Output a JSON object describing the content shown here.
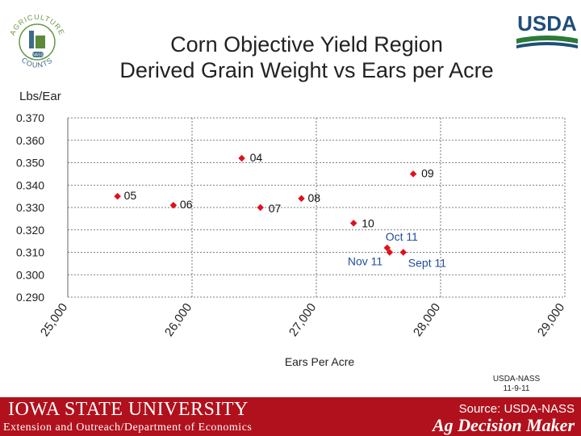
{
  "header": {
    "title_line1": "Corn Objective Yield Region",
    "title_line2": "Derived Grain Weight vs Ears per Acre",
    "left_logo_text_top": "AGRICULTURE",
    "left_logo_text_bottom": "COUNTS",
    "left_logo_badge": "NASS",
    "right_logo_text": "USDA"
  },
  "chart_data": {
    "type": "scatter",
    "title": "Corn Objective Yield Region Derived Grain Weight vs Ears per Acre",
    "xlabel": "Ears Per Acre",
    "ylabel": "Lbs/Ear",
    "xlim": [
      25000,
      29000
    ],
    "ylim": [
      0.29,
      0.37
    ],
    "x_ticks": [
      25000,
      26000,
      27000,
      28000,
      29000
    ],
    "x_tick_labels": [
      "25,000",
      "26,000",
      "27,000",
      "28,000",
      "29,000"
    ],
    "y_ticks": [
      0.29,
      0.3,
      0.31,
      0.32,
      0.33,
      0.34,
      0.35,
      0.36,
      0.37
    ],
    "y_tick_labels": [
      "0.290",
      "0.300",
      "0.310",
      "0.320",
      "0.330",
      "0.340",
      "0.350",
      "0.360",
      "0.370"
    ],
    "grid": true,
    "marker_color": "#e0101c",
    "label_color_black": "#111111",
    "label_color_blue": "#1f4e9c",
    "points": [
      {
        "label": "05",
        "x": 25400,
        "y": 0.335,
        "label_color": "black"
      },
      {
        "label": "06",
        "x": 25850,
        "y": 0.331,
        "label_color": "black"
      },
      {
        "label": "04",
        "x": 26400,
        "y": 0.352,
        "label_color": "black"
      },
      {
        "label": "07",
        "x": 26550,
        "y": 0.33,
        "label_color": "black"
      },
      {
        "label": "08",
        "x": 26880,
        "y": 0.334,
        "label_color": "black"
      },
      {
        "label": "09",
        "x": 27780,
        "y": 0.345,
        "label_color": "black"
      },
      {
        "label": "10",
        "x": 27300,
        "y": 0.323,
        "label_color": "black"
      },
      {
        "label": "Oct 11",
        "x": 27570,
        "y": 0.312,
        "label_color": "blue"
      },
      {
        "label": "Nov 11",
        "x": 27590,
        "y": 0.31,
        "label_color": "blue"
      },
      {
        "label": "Sept 11",
        "x": 27700,
        "y": 0.31,
        "label_color": "blue"
      }
    ]
  },
  "credit": {
    "line1": "USDA-NASS",
    "line2": "11-9-11"
  },
  "footer": {
    "university": "IOWA STATE UNIVERSITY",
    "department": "Extension and Outreach/Department of Economics",
    "source": "Source: USDA-NASS",
    "program": "Ag Decision Maker"
  }
}
